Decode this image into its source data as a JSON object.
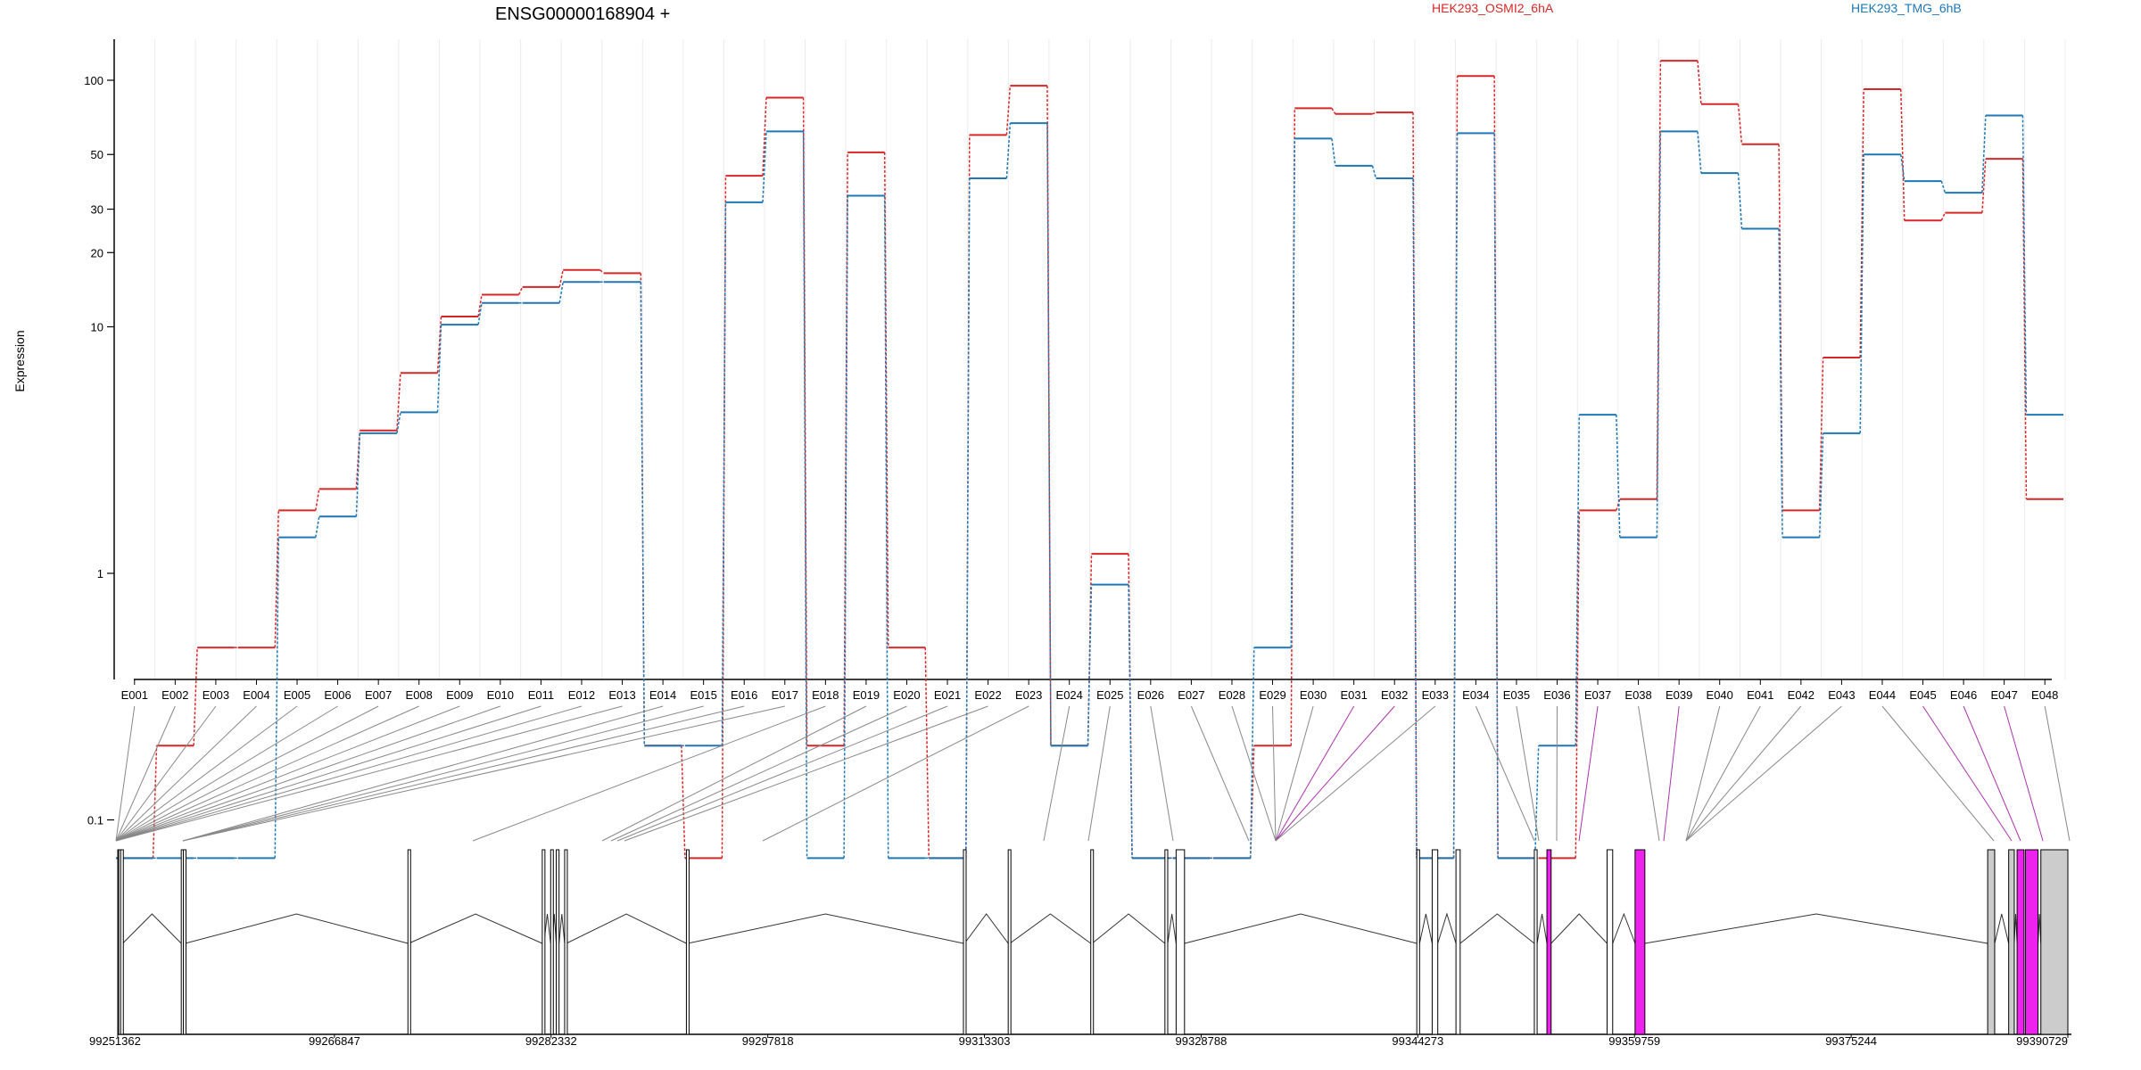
{
  "chart_data": {
    "type": "line",
    "title": "ENSG00000168904 +",
    "ylabel": "Expression",
    "yscale": "log",
    "yticks": [
      "0.1",
      "1",
      "10",
      "20",
      "30",
      "50",
      "100"
    ],
    "colors": {
      "HEK293_OSMI2_6hA": "#d62728",
      "HEK293_TMG_6hB": "#1f77b4",
      "highlight": "#ee22ee"
    },
    "categories": [
      "E001",
      "E002",
      "E003",
      "E004",
      "E005",
      "E006",
      "E007",
      "E008",
      "E009",
      "E010",
      "E011",
      "E012",
      "E013",
      "E014",
      "E015",
      "E016",
      "E017",
      "E018",
      "E019",
      "E020",
      "E021",
      "E022",
      "E023",
      "E024",
      "E025",
      "E026",
      "E027",
      "E028",
      "E029",
      "E030",
      "E031",
      "E032",
      "E033",
      "E034",
      "E035",
      "E036",
      "E037",
      "E038",
      "E039",
      "E040",
      "E041",
      "E042",
      "E043",
      "E044",
      "E045",
      "E046",
      "E047",
      "E048"
    ],
    "series": [
      {
        "name": "HEK293_OSMI2_6hA",
        "color": "#d62728",
        "values": [
          0.07,
          0.2,
          0.5,
          0.5,
          1.8,
          2.2,
          3.8,
          6.5,
          11,
          13.5,
          14.5,
          17,
          16.5,
          0.2,
          0.07,
          41,
          85,
          0.2,
          51,
          0.5,
          0.07,
          60,
          95,
          0.2,
          1.2,
          0.07,
          0.07,
          0.07,
          0.2,
          77,
          73,
          74,
          0.07,
          104,
          0.07,
          0.07,
          1.8,
          2.0,
          120,
          80,
          55,
          1.8,
          7.5,
          92,
          27,
          29,
          48,
          2.0
        ]
      },
      {
        "name": "HEK293_TMG_6hB",
        "color": "#1f77b4",
        "values": [
          0.07,
          0.07,
          0.07,
          0.07,
          1.4,
          1.7,
          3.7,
          4.5,
          10.2,
          12.5,
          12.5,
          15.2,
          15.2,
          0.2,
          0.2,
          32,
          62,
          0.07,
          34,
          0.07,
          0.07,
          40,
          67,
          0.2,
          0.9,
          0.07,
          0.07,
          0.07,
          0.5,
          58,
          45,
          40,
          0.07,
          61,
          0.07,
          0.2,
          4.4,
          1.4,
          62,
          42,
          25,
          1.4,
          3.7,
          50,
          39,
          35,
          72,
          4.4
        ]
      }
    ],
    "highlighted_exons": [
      "E031",
      "E032",
      "E037",
      "E039",
      "E045",
      "E046",
      "E047"
    ],
    "genomic_axis": {
      "tick_labels": [
        "99251362",
        "99266847",
        "99282332",
        "99297818",
        "99313303",
        "99328788",
        "99344273",
        "99359759",
        "99375244",
        "99390729"
      ],
      "start": 99251362,
      "end": 99390729
    },
    "exons": [
      {
        "start": 99251362,
        "end": 99251420
      },
      {
        "start": 99251430,
        "end": 99251560
      },
      {
        "start": 99251570,
        "end": 99251720
      },
      {
        "start": 99255900,
        "end": 99256020
      },
      {
        "start": 99256050,
        "end": 99256180
      },
      {
        "start": 99272100,
        "end": 99272160
      },
      {
        "start": 99281700,
        "end": 99281820
      },
      {
        "start": 99282300,
        "end": 99282420
      },
      {
        "start": 99282700,
        "end": 99282900
      },
      {
        "start": 99283300,
        "end": 99283420
      },
      {
        "start": 99292000,
        "end": 99292100
      },
      {
        "start": 99311800,
        "end": 99311880
      },
      {
        "start": 99315000,
        "end": 99315120
      },
      {
        "start": 99320900,
        "end": 99321000
      },
      {
        "start": 99326200,
        "end": 99326400
      },
      {
        "start": 99327000,
        "end": 99327600
      },
      {
        "start": 99344200,
        "end": 99344400
      },
      {
        "start": 99345300,
        "end": 99345700
      },
      {
        "start": 99347000,
        "end": 99347300
      },
      {
        "start": 99352600,
        "end": 99352800
      },
      {
        "start": 99353500,
        "end": 99353800
      },
      {
        "start": 99357800,
        "end": 99358200
      },
      {
        "start": 99359800,
        "end": 99360500
      },
      {
        "start": 99385000,
        "end": 99385500
      },
      {
        "start": 99386500,
        "end": 99386900
      },
      {
        "start": 99387100,
        "end": 99387600
      },
      {
        "start": 99387700,
        "end": 99388600
      },
      {
        "start": 99388800,
        "end": 99390729
      }
    ]
  }
}
